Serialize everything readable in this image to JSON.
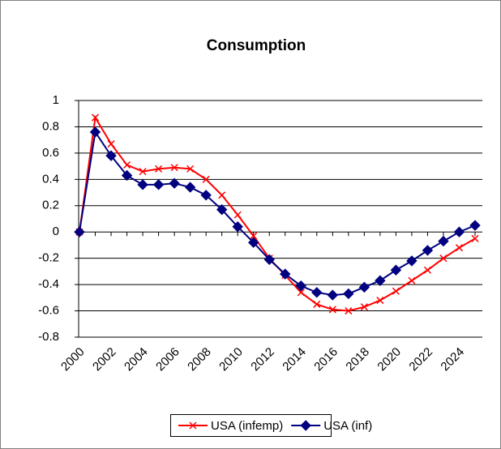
{
  "chart_data": {
    "type": "line",
    "title": "Consumption",
    "categories": [
      "2000",
      null,
      "2002",
      null,
      "2004",
      null,
      "2006",
      null,
      "2008",
      null,
      "2010",
      null,
      "2012",
      null,
      "2014",
      null,
      "2016",
      null,
      "2018",
      null,
      "2020",
      null,
      "2022",
      null,
      "2024",
      null
    ],
    "series": [
      {
        "name": "USA (infemp)",
        "color": "#ff0000",
        "marker": "x",
        "values": [
          0,
          0.87,
          0.67,
          0.51,
          0.46,
          0.48,
          0.49,
          0.48,
          0.4,
          0.28,
          0.13,
          -0.03,
          -0.2,
          -0.33,
          -0.46,
          -0.55,
          -0.59,
          -0.6,
          -0.57,
          -0.52,
          -0.45,
          -0.37,
          -0.29,
          -0.2,
          -0.12,
          -0.05
        ]
      },
      {
        "name": "USA (inf)",
        "color": "#000080",
        "marker": "diamond",
        "values": [
          0,
          0.76,
          0.58,
          0.43,
          0.36,
          0.36,
          0.37,
          0.34,
          0.28,
          0.17,
          0.04,
          -0.08,
          -0.21,
          -0.32,
          -0.41,
          -0.46,
          -0.48,
          -0.47,
          -0.42,
          -0.37,
          -0.29,
          -0.22,
          -0.14,
          -0.07,
          0.0,
          0.05
        ]
      }
    ],
    "ylim": [
      -0.8,
      1
    ],
    "yticks": [
      -0.8,
      -0.6,
      -0.4,
      -0.2,
      0,
      0.2,
      0.4,
      0.6,
      0.8,
      1
    ],
    "grid": true,
    "legend": "bottom"
  }
}
